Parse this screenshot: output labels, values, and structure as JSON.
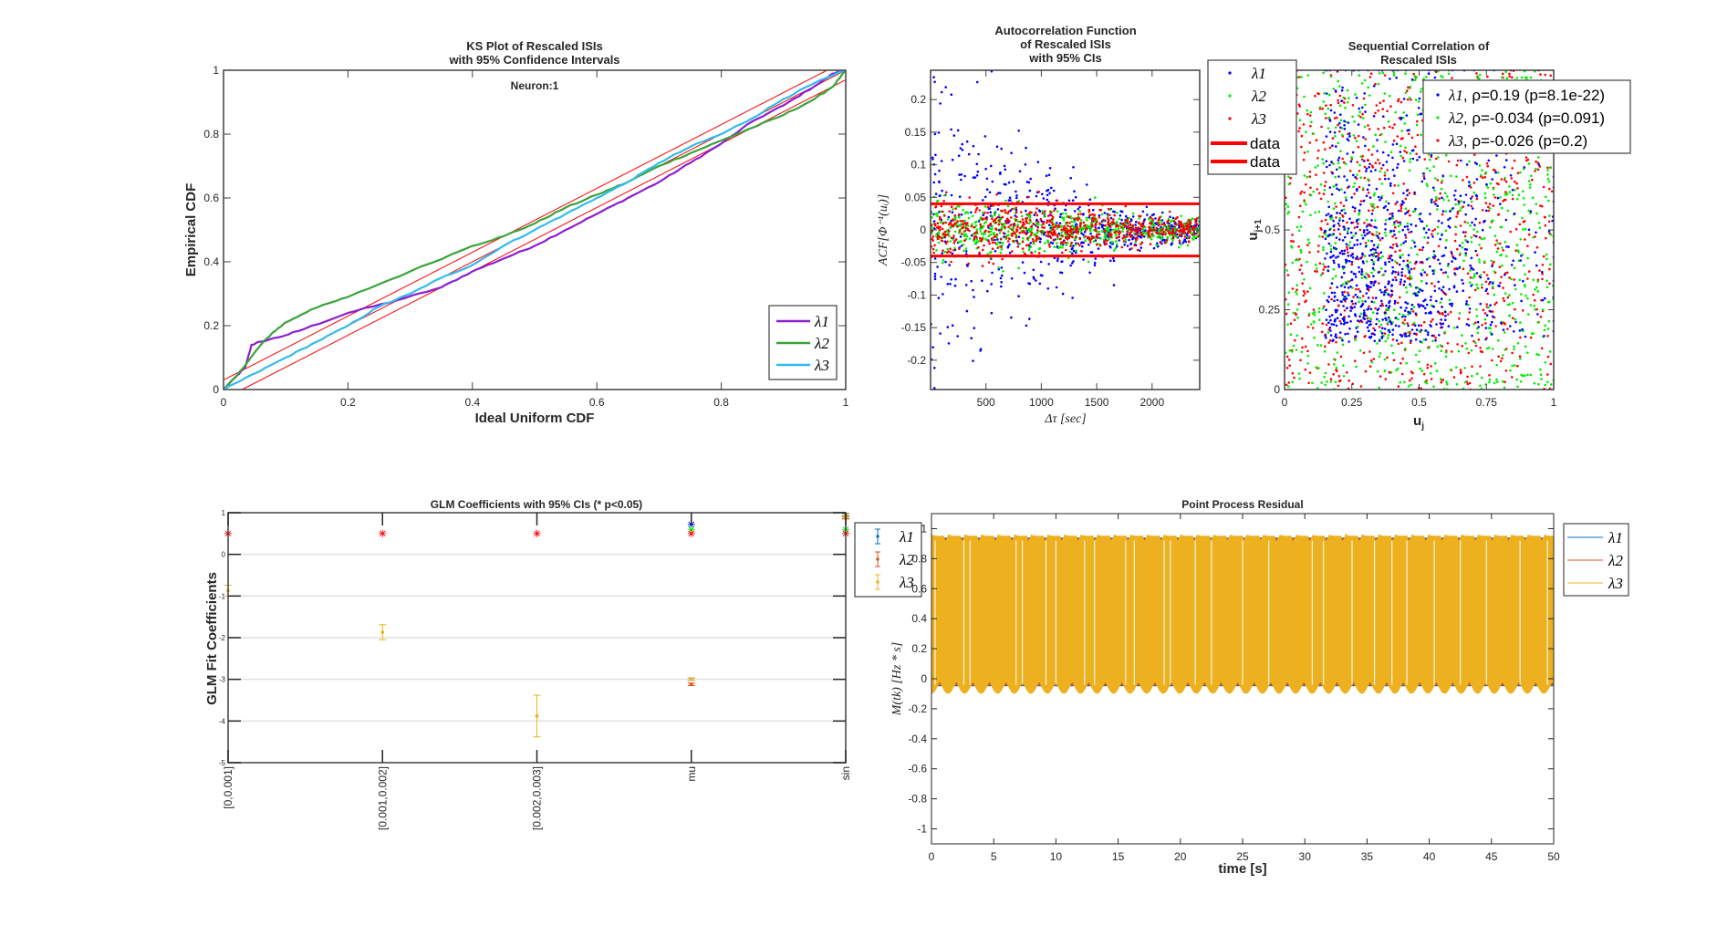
{
  "colors": {
    "axis": "#404040",
    "ci_line": "#ff0000",
    "ks_l1": "#8a1fd1",
    "ks_l2": "#3aa33a",
    "ks_l3": "#33bbee",
    "dot_l1": "#0000ff",
    "dot_l2": "#00ee00",
    "dot_l3": "#ff0000",
    "mat_blue": "#0072bd",
    "mat_orange": "#d95319",
    "mat_yellow": "#edb120",
    "grid": "#e0e0e0"
  },
  "chart_data": [
    {
      "id": "ks",
      "type": "line",
      "title": [
        "KS Plot of Rescaled ISIs",
        "with 95% Confidence Intervals"
      ],
      "annotation": "Neuron:1",
      "xlabel": "Ideal Uniform CDF",
      "ylabel": "Empirical CDF",
      "xlim": [
        0,
        1
      ],
      "ylim": [
        0,
        1
      ],
      "xticks": [
        0,
        0.2,
        0.4,
        0.6,
        0.8,
        1
      ],
      "xticklabels": [
        "0",
        "0.2",
        "0.4",
        "0.6",
        "0.8",
        "1"
      ],
      "yticks": [
        0,
        0.2,
        0.4,
        0.6,
        0.8,
        1
      ],
      "yticklabels": [
        "0",
        "0.2",
        "0.4",
        "0.6",
        "0.8",
        "1"
      ],
      "confidence_band": 0.03,
      "legend": [
        "λ1",
        "λ2",
        "λ3"
      ],
      "legend_location": "bottom-right",
      "series": [
        {
          "name": "λ1",
          "x": [
            0,
            0.02,
            0.035,
            0.045,
            0.06,
            0.1,
            0.13,
            0.2,
            0.28,
            0.35,
            0.4,
            0.45,
            0.5,
            0.55,
            0.6,
            0.65,
            0.7,
            0.75,
            0.8,
            0.85,
            0.9,
            0.95,
            0.98,
            1
          ],
          "y": [
            0,
            0.04,
            0.07,
            0.14,
            0.15,
            0.17,
            0.19,
            0.24,
            0.28,
            0.32,
            0.37,
            0.41,
            0.45,
            0.5,
            0.55,
            0.6,
            0.65,
            0.71,
            0.77,
            0.84,
            0.89,
            0.95,
            0.99,
            1
          ]
        },
        {
          "name": "λ2",
          "x": [
            0,
            0.02,
            0.04,
            0.06,
            0.08,
            0.1,
            0.14,
            0.2,
            0.3,
            0.4,
            0.45,
            0.5,
            0.55,
            0.6,
            0.65,
            0.7,
            0.75,
            0.8,
            0.85,
            0.9,
            0.95,
            0.98,
            1
          ],
          "y": [
            0,
            0.04,
            0.09,
            0.14,
            0.18,
            0.21,
            0.25,
            0.29,
            0.37,
            0.45,
            0.48,
            0.52,
            0.57,
            0.61,
            0.65,
            0.7,
            0.74,
            0.78,
            0.82,
            0.86,
            0.91,
            0.95,
            1
          ]
        },
        {
          "name": "λ3",
          "x": [
            0,
            0.05,
            0.1,
            0.15,
            0.2,
            0.25,
            0.3,
            0.35,
            0.4,
            0.45,
            0.5,
            0.55,
            0.6,
            0.65,
            0.7,
            0.75,
            0.8,
            0.85,
            0.9,
            0.95,
            1
          ],
          "y": [
            0,
            0.05,
            0.1,
            0.15,
            0.2,
            0.26,
            0.3,
            0.35,
            0.39,
            0.45,
            0.5,
            0.55,
            0.6,
            0.65,
            0.71,
            0.76,
            0.8,
            0.85,
            0.91,
            0.96,
            1
          ]
        }
      ]
    },
    {
      "id": "acf",
      "type": "scatter",
      "title": [
        "Autocorrelation Function",
        "of Rescaled ISIs",
        "with 95% CIs"
      ],
      "xlabel": "Δτ [sec]",
      "ylabel": "ACF[Φ⁻¹(uᵢ)]",
      "xlim": [
        0,
        2430
      ],
      "ylim": [
        -0.245,
        0.245
      ],
      "xticks": [
        500,
        1000,
        1500,
        2000
      ],
      "xticklabels": [
        "500",
        "1000",
        "1500",
        "2000"
      ],
      "yticks": [
        -0.2,
        -0.15,
        -0.1,
        -0.05,
        0,
        0.05,
        0.1,
        0.15,
        0.2
      ],
      "yticklabels": [
        "-0.2",
        "-0.15",
        "-0.1",
        "-0.05",
        "0",
        "0.05",
        "0.1",
        "0.15",
        "0.2"
      ],
      "ci_bounds": [
        0.04,
        -0.04
      ],
      "series_spread": {
        "λ1": [
          0.2,
          0.0
        ],
        "λ2": [
          0.04,
          0.005
        ],
        "λ3": [
          0.045,
          0.005
        ]
      },
      "legend": [
        "λ1",
        "λ2",
        "λ3",
        "data",
        "data"
      ],
      "legend_location": "outside-right"
    },
    {
      "id": "seq",
      "type": "scatter",
      "title": [
        "Sequential Correlation of",
        "Rescaled ISIs"
      ],
      "xlabel": "uj",
      "ylabel": "uj+1",
      "xlim": [
        0,
        1
      ],
      "ylim": [
        0,
        1
      ],
      "xticks": [
        0,
        0.25,
        0.5,
        0.75,
        1
      ],
      "xticklabels": [
        "0",
        "0.25",
        "0.5",
        "0.75",
        "1"
      ],
      "yticks": [
        0,
        0.25,
        0.5,
        0.75,
        1
      ],
      "yticklabels": [
        "0",
        "0.25",
        "0.5",
        "0.75",
        "1"
      ],
      "legend": [
        {
          "sym": "λ1",
          "text": ", ρ=0.19 (p=8.1e-22)"
        },
        {
          "sym": "λ2",
          "text": ", ρ=-0.034 (p=0.091)"
        },
        {
          "sym": "λ3",
          "text": ", ρ=-0.026 (p=0.2)"
        }
      ],
      "legend_location": "top-right",
      "rho": [
        0.19,
        -0.034,
        -0.026
      ],
      "p": [
        "8.1e-22",
        "0.091",
        "0.2"
      ]
    },
    {
      "id": "glm",
      "type": "errorbar",
      "title": "GLM Coefficients with 95% CIs (* p<0.05)",
      "ylabel": "GLM Fit Coefficients",
      "categories": [
        "[0,0.001]",
        "[0.001,0.002]",
        "[0.002,0.003]",
        "mu",
        "sin"
      ],
      "ylim": [
        -5,
        1
      ],
      "yticks": [
        -5,
        -4,
        -3,
        -2,
        -1,
        0,
        1
      ],
      "yticklabels": [
        "-5",
        "-4",
        "-3",
        "-2",
        "-1",
        "0",
        "1"
      ],
      "grid": true,
      "legend": [
        "λ1",
        "λ2",
        "λ3"
      ],
      "legend_location": "outside-right",
      "series": [
        {
          "name": "λ1",
          "values": [
            null,
            null,
            null,
            -3.0,
            0.95
          ],
          "err": [
            0,
            0,
            0,
            0.03,
            0.03
          ]
        },
        {
          "name": "λ2",
          "values": [
            null,
            null,
            null,
            -3.12,
            0.88
          ],
          "err": [
            0,
            0,
            0,
            0.03,
            0.03
          ]
        },
        {
          "name": "λ3",
          "values": [
            -0.87,
            -1.87,
            -3.88,
            -3.0,
            0.92
          ],
          "err": [
            0.13,
            0.18,
            0.5,
            0.03,
            0.05
          ]
        }
      ],
      "significance": [
        {
          "cat": 0,
          "y": 0.5,
          "color": "#ff0000"
        },
        {
          "cat": 1,
          "y": 0.5,
          "color": "#ff0000"
        },
        {
          "cat": 2,
          "y": 0.5,
          "color": "#ff0000"
        },
        {
          "cat": 3,
          "y": 0.72,
          "color": "#0000ff"
        },
        {
          "cat": 3,
          "y": 0.6,
          "color": "#00ee00"
        },
        {
          "cat": 3,
          "y": 0.5,
          "color": "#ff0000"
        },
        {
          "cat": 4,
          "y": 0.6,
          "color": "#00ee00"
        },
        {
          "cat": 4,
          "y": 0.5,
          "color": "#ff0000"
        }
      ]
    },
    {
      "id": "pp",
      "type": "line",
      "title": "Point Process Residual",
      "xlabel": "time [s]",
      "ylabel": "M(tk) [Hz * s]",
      "xlim": [
        0,
        50
      ],
      "ylim": [
        -1.1,
        1.1
      ],
      "xticks": [
        0,
        5,
        10,
        15,
        20,
        25,
        30,
        35,
        40,
        45,
        50
      ],
      "xticklabels": [
        "0",
        "5",
        "10",
        "15",
        "20",
        "25",
        "30",
        "35",
        "40",
        "45",
        "50"
      ],
      "yticks": [
        -1,
        -0.8,
        -0.6,
        -0.4,
        -0.2,
        0,
        0.2,
        0.4,
        0.6,
        0.8,
        1
      ],
      "yticklabels": [
        "-1",
        "-0.8",
        "-0.6",
        "-0.4",
        "-0.2",
        "0",
        "0.2",
        "0.4",
        "0.6",
        "0.8",
        "1"
      ],
      "signal_range": [
        -0.1,
        0.97
      ],
      "oscillation_period_s": 1.33,
      "legend": [
        "λ1",
        "λ2",
        "λ3"
      ],
      "legend_location": "outside-right"
    }
  ]
}
